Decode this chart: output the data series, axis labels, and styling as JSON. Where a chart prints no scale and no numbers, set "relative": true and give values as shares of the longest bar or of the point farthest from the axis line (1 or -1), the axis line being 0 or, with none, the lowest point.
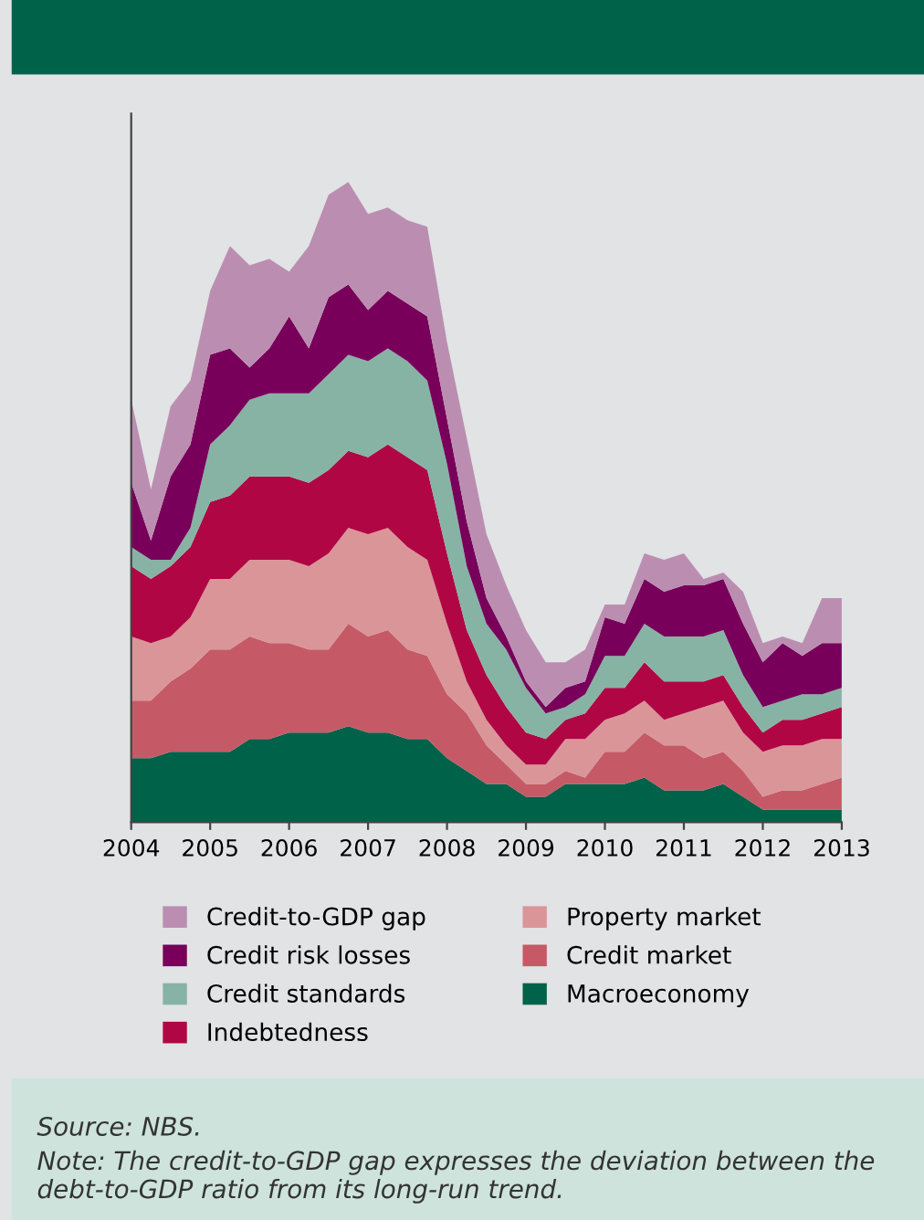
{
  "chart_data": {
    "type": "area",
    "stacked": true,
    "relative": true,
    "x": [
      2004,
      2004.25,
      2004.5,
      2004.75,
      2005,
      2005.25,
      2005.5,
      2005.75,
      2006,
      2006.25,
      2006.5,
      2006.75,
      2007,
      2007.25,
      2007.5,
      2007.75,
      2008,
      2008.25,
      2008.5,
      2008.75,
      2009,
      2009.25,
      2009.5,
      2009.75,
      2010,
      2010.25,
      2010.5,
      2010.75,
      2011,
      2011.25,
      2011.5,
      2011.75,
      2012,
      2012.25,
      2012.5,
      2012.75,
      2013
    ],
    "xlim": [
      2004,
      2013
    ],
    "xticks": [
      2004,
      2005,
      2006,
      2007,
      2008,
      2009,
      2010,
      2011,
      2012,
      2013
    ],
    "series": [
      {
        "name": "Macroeconomy",
        "color": "#006249",
        "values": [
          0.1,
          0.1,
          0.11,
          0.11,
          0.11,
          0.11,
          0.13,
          0.13,
          0.14,
          0.14,
          0.14,
          0.15,
          0.14,
          0.14,
          0.13,
          0.13,
          0.1,
          0.08,
          0.06,
          0.06,
          0.04,
          0.04,
          0.06,
          0.06,
          0.06,
          0.06,
          0.07,
          0.05,
          0.05,
          0.05,
          0.06,
          0.04,
          0.02,
          0.02,
          0.02,
          0.02,
          0.02
        ]
      },
      {
        "name": "Credit market",
        "color": "#c55a66",
        "values": [
          0.09,
          0.09,
          0.11,
          0.13,
          0.16,
          0.16,
          0.16,
          0.15,
          0.14,
          0.13,
          0.13,
          0.16,
          0.15,
          0.16,
          0.14,
          0.13,
          0.1,
          0.09,
          0.06,
          0.03,
          0.02,
          0.02,
          0.02,
          0.01,
          0.05,
          0.05,
          0.07,
          0.07,
          0.07,
          0.05,
          0.05,
          0.04,
          0.02,
          0.03,
          0.03,
          0.04,
          0.05
        ]
      },
      {
        "name": "Property market",
        "color": "#da9598",
        "values": [
          0.1,
          0.09,
          0.07,
          0.08,
          0.11,
          0.11,
          0.12,
          0.13,
          0.13,
          0.13,
          0.15,
          0.15,
          0.16,
          0.16,
          0.16,
          0.15,
          0.11,
          0.05,
          0.04,
          0.03,
          0.03,
          0.03,
          0.05,
          0.06,
          0.05,
          0.06,
          0.05,
          0.04,
          0.05,
          0.08,
          0.08,
          0.06,
          0.07,
          0.07,
          0.07,
          0.07,
          0.06
        ]
      },
      {
        "name": "Indebtedness",
        "color": "#b00644",
        "values": [
          0.11,
          0.1,
          0.11,
          0.11,
          0.12,
          0.13,
          0.13,
          0.13,
          0.13,
          0.13,
          0.13,
          0.12,
          0.12,
          0.13,
          0.14,
          0.14,
          0.11,
          0.08,
          0.07,
          0.06,
          0.05,
          0.04,
          0.03,
          0.04,
          0.05,
          0.04,
          0.06,
          0.06,
          0.05,
          0.04,
          0.04,
          0.04,
          0.03,
          0.04,
          0.04,
          0.04,
          0.05
        ]
      },
      {
        "name": "Credit standards",
        "color": "#87b3a5",
        "values": [
          0.03,
          0.03,
          0.01,
          0.03,
          0.09,
          0.11,
          0.12,
          0.13,
          0.13,
          0.14,
          0.15,
          0.15,
          0.15,
          0.15,
          0.15,
          0.14,
          0.14,
          0.1,
          0.08,
          0.09,
          0.07,
          0.04,
          0.02,
          0.03,
          0.05,
          0.05,
          0.06,
          0.07,
          0.07,
          0.07,
          0.07,
          0.05,
          0.04,
          0.03,
          0.04,
          0.03,
          0.03
        ]
      },
      {
        "name": "Credit risk losses",
        "color": "#78005a",
        "values": [
          0.1,
          0.03,
          0.13,
          0.13,
          0.14,
          0.12,
          0.05,
          0.07,
          0.12,
          0.07,
          0.12,
          0.11,
          0.08,
          0.09,
          0.09,
          0.1,
          0.07,
          0.07,
          0.04,
          0.02,
          0.01,
          0.01,
          0.03,
          0.02,
          0.06,
          0.05,
          0.07,
          0.07,
          0.08,
          0.08,
          0.08,
          0.08,
          0.07,
          0.09,
          0.06,
          0.08,
          0.07
        ]
      },
      {
        "name": "Credit-to-GDP gap",
        "color": "#bb8eb1",
        "values": [
          0.13,
          0.08,
          0.11,
          0.1,
          0.1,
          0.16,
          0.16,
          0.14,
          0.07,
          0.16,
          0.16,
          0.16,
          0.15,
          0.13,
          0.13,
          0.14,
          0.12,
          0.13,
          0.1,
          0.08,
          0.08,
          0.07,
          0.04,
          0.05,
          0.02,
          0.03,
          0.04,
          0.05,
          0.05,
          0.01,
          0.01,
          0.05,
          0.03,
          0.01,
          0.02,
          0.07,
          0.07
        ]
      }
    ],
    "legend": "bottom",
    "grid": false,
    "annotations": [
      "Source: NBS.",
      "Note: The credit-to-GDP gap expresses the deviation between the debt-to-GDP ratio from its long-run trend."
    ]
  }
}
